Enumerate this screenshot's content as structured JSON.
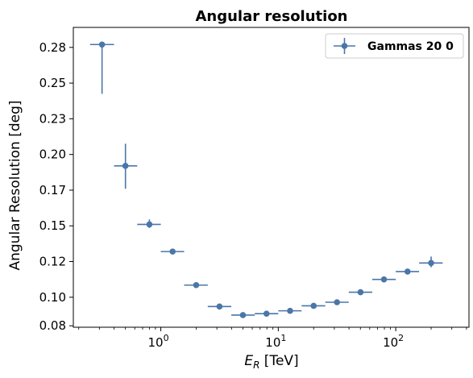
{
  "chart_data": {
    "type": "scatter",
    "title": "Angular resolution",
    "xlabel_main": "E",
    "xlabel_sub": "R",
    "xlabel_unit": " [TeV]",
    "ylabel": "Angular Resolution [deg]",
    "x_scale": "log",
    "xlim": [
      0.18,
      420
    ],
    "ylim": [
      0.079,
      0.289
    ],
    "x_ticks": [
      {
        "value": 1,
        "base": "10",
        "exp": "0"
      },
      {
        "value": 10,
        "base": "10",
        "exp": "1"
      },
      {
        "value": 100,
        "base": "10",
        "exp": "2"
      }
    ],
    "y_ticks": [
      {
        "value": 0.08,
        "label": "0.08"
      },
      {
        "value": 0.1,
        "label": "0.10"
      },
      {
        "value": 0.125,
        "label": "0.12"
      },
      {
        "value": 0.15,
        "label": "0.15"
      },
      {
        "value": 0.175,
        "label": "0.17"
      },
      {
        "value": 0.2,
        "label": "0.20"
      },
      {
        "value": 0.225,
        "label": "0.23"
      },
      {
        "value": 0.25,
        "label": "0.25"
      },
      {
        "value": 0.275,
        "label": "0.28"
      }
    ],
    "grid": false,
    "legend_position": "top-right",
    "series": [
      {
        "name": "Gammas 20 0",
        "color": "#4a76a8",
        "points": [
          {
            "x": 0.316,
            "y": 0.277,
            "xlo": 0.25,
            "xhi": 0.4,
            "yerr_lo": 0.0345,
            "yerr_hi": 0.0
          },
          {
            "x": 0.5,
            "y": 0.192,
            "xlo": 0.4,
            "xhi": 0.63,
            "yerr_lo": 0.016,
            "yerr_hi": 0.0155
          },
          {
            "x": 0.8,
            "y": 0.151,
            "xlo": 0.63,
            "xhi": 1.0,
            "yerr_lo": 0.0025,
            "yerr_hi": 0.0035
          },
          {
            "x": 1.26,
            "y": 0.132,
            "xlo": 1.0,
            "xhi": 1.58,
            "yerr_lo": 0.0,
            "yerr_hi": 0.0
          },
          {
            "x": 2.0,
            "y": 0.1085,
            "xlo": 1.58,
            "xhi": 2.51,
            "yerr_lo": 0.0,
            "yerr_hi": 0.0
          },
          {
            "x": 3.16,
            "y": 0.0935,
            "xlo": 2.51,
            "xhi": 3.98,
            "yerr_lo": 0.0,
            "yerr_hi": 0.0
          },
          {
            "x": 5.0,
            "y": 0.0875,
            "xlo": 3.98,
            "xhi": 6.31,
            "yerr_lo": 0.0,
            "yerr_hi": 0.0
          },
          {
            "x": 7.94,
            "y": 0.0885,
            "xlo": 6.31,
            "xhi": 10.0,
            "yerr_lo": 0.0,
            "yerr_hi": 0.0
          },
          {
            "x": 12.6,
            "y": 0.0905,
            "xlo": 10.0,
            "xhi": 15.8,
            "yerr_lo": 0.0,
            "yerr_hi": 0.0
          },
          {
            "x": 20.0,
            "y": 0.094,
            "xlo": 15.8,
            "xhi": 25.1,
            "yerr_lo": 0.0,
            "yerr_hi": 0.0
          },
          {
            "x": 31.6,
            "y": 0.0965,
            "xlo": 25.1,
            "xhi": 39.8,
            "yerr_lo": 0.0,
            "yerr_hi": 0.0
          },
          {
            "x": 50.1,
            "y": 0.1035,
            "xlo": 39.8,
            "xhi": 63.1,
            "yerr_lo": 0.0,
            "yerr_hi": 0.0
          },
          {
            "x": 79.4,
            "y": 0.1125,
            "xlo": 63.1,
            "xhi": 100.0,
            "yerr_lo": 0.0015,
            "yerr_hi": 0.0015
          },
          {
            "x": 126.0,
            "y": 0.118,
            "xlo": 100.0,
            "xhi": 158.0,
            "yerr_lo": 0.0015,
            "yerr_hi": 0.0015
          },
          {
            "x": 200.0,
            "y": 0.124,
            "xlo": 158.0,
            "xhi": 251.0,
            "yerr_lo": 0.003,
            "yerr_hi": 0.0045
          }
        ]
      }
    ]
  }
}
